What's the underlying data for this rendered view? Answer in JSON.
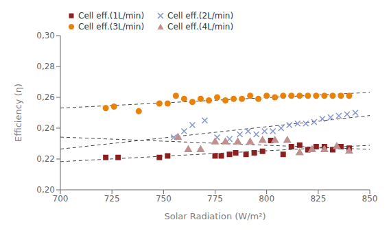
{
  "chart_data": {
    "type": "scatter",
    "title": "",
    "xlabel": "Solar Radiation (W/m²)",
    "ylabel": "Efficiency (η)",
    "xlim": [
      700,
      850
    ],
    "ylim": [
      0.2,
      0.3
    ],
    "xticks": [
      700,
      725,
      750,
      775,
      800,
      825,
      850
    ],
    "yticks": [
      {
        "value": 0.2,
        "label": "0,20"
      },
      {
        "value": 0.22,
        "label": "0,22"
      },
      {
        "value": 0.24,
        "label": "0,24"
      },
      {
        "value": 0.26,
        "label": "0,26"
      },
      {
        "value": 0.28,
        "label": "0,28"
      },
      {
        "value": 0.3,
        "label": "0,30"
      }
    ],
    "grid": false,
    "legend": "upper left",
    "series": [
      {
        "name": "Cell eff.(1L/min)",
        "color": "#8B2020",
        "marker": "square",
        "x": [
          722,
          728,
          748,
          752,
          775,
          778,
          782,
          785,
          790,
          794,
          798,
          802,
          808,
          812,
          816,
          820,
          824,
          828,
          832,
          836,
          840
        ],
        "values": [
          0.221,
          0.221,
          0.221,
          0.222,
          0.222,
          0.222,
          0.223,
          0.224,
          0.223,
          0.224,
          0.225,
          0.232,
          0.223,
          0.228,
          0.229,
          0.226,
          0.228,
          0.228,
          0.226,
          0.228,
          0.227
        ],
        "trendline": {
          "x": [
            700,
            850
          ],
          "values": [
            0.218288,
            0.228868
          ],
          "color": "#444444",
          "line_style": "dashed"
        }
      },
      {
        "name": "Cell eff.(2L/min)",
        "color": "#8899CC",
        "marker": "x",
        "x": [
          755,
          760,
          764,
          770,
          776,
          782,
          787,
          791,
          795,
          799,
          803,
          807,
          811,
          815,
          819,
          823,
          827,
          831,
          835,
          839,
          843
        ],
        "values": [
          0.234,
          0.238,
          0.242,
          0.245,
          0.234,
          0.233,
          0.236,
          0.238,
          0.236,
          0.238,
          0.238,
          0.24,
          0.242,
          0.243,
          0.243,
          0.244,
          0.246,
          0.247,
          0.248,
          0.249,
          0.25
        ],
        "trendline": {
          "x": [
            700,
            850
          ],
          "values": [
            0.226443,
            0.248162
          ],
          "color": "#444444",
          "line_style": "dashed"
        }
      },
      {
        "name": "Cell eff.(3L/min)",
        "color": "#E8820A",
        "marker": "circle",
        "x": [
          722,
          726,
          738,
          748,
          752,
          756,
          760,
          764,
          768,
          772,
          776,
          780,
          784,
          788,
          792,
          796,
          800,
          804,
          808,
          812,
          816,
          820,
          824,
          828,
          832,
          836,
          840
        ],
        "values": [
          0.253,
          0.254,
          0.251,
          0.256,
          0.256,
          0.261,
          0.259,
          0.257,
          0.259,
          0.258,
          0.26,
          0.258,
          0.259,
          0.259,
          0.261,
          0.259,
          0.261,
          0.26,
          0.261,
          0.261,
          0.261,
          0.261,
          0.261,
          0.261,
          0.261,
          0.261,
          0.261
        ],
        "trendline": {
          "x": [
            700,
            850
          ],
          "values": [
            0.253027,
            0.263164
          ],
          "color": "#444444",
          "line_style": "dashed"
        }
      },
      {
        "name": "Cell eff.(4L/min)",
        "color": "#C09090",
        "marker": "triangle",
        "x": [
          757,
          762,
          768,
          775,
          780,
          786,
          792,
          798,
          804,
          810,
          816,
          822,
          828,
          834,
          840
        ],
        "values": [
          0.234,
          0.226,
          0.226,
          0.231,
          0.231,
          0.231,
          0.231,
          0.232,
          0.232,
          0.232,
          0.224,
          0.226,
          0.226,
          0.228,
          0.225
        ],
        "trendline": {
          "x": [
            700,
            850
          ],
          "values": [
            0.234198,
            0.226253
          ],
          "color": "#444444",
          "line_style": "dashed"
        }
      }
    ]
  }
}
